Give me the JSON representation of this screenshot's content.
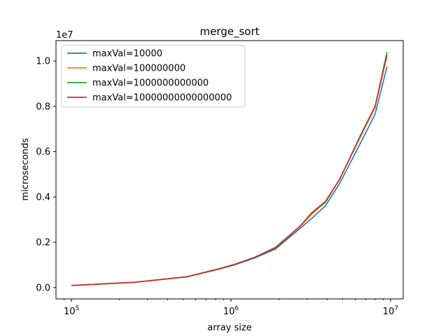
{
  "chart_data": {
    "type": "line",
    "title": "merge_sort",
    "xlabel": "array size",
    "ylabel": "microseconds",
    "xscale": "log",
    "xlim": [
      80000,
      12000000
    ],
    "ylim": [
      -500000,
      10900000
    ],
    "y_offset_label": "1e7",
    "x_ticks": [
      {
        "value": 100000,
        "base": "10",
        "exp": "5"
      },
      {
        "value": 1000000,
        "base": "10",
        "exp": "6"
      },
      {
        "value": 10000000,
        "base": "10",
        "exp": "7"
      }
    ],
    "y_ticks": [
      {
        "value": 0,
        "label": "0.0"
      },
      {
        "value": 2000000,
        "label": "0.2"
      },
      {
        "value": 4000000,
        "label": "0.4"
      },
      {
        "value": 6000000,
        "label": "0.6"
      },
      {
        "value": 8000000,
        "label": "0.8"
      },
      {
        "value": 10000000,
        "label": "1.0"
      }
    ],
    "grid": false,
    "legend_position": "upper-left",
    "x": [
      100000,
      150000,
      250000,
      350000,
      530000,
      850000,
      1050000,
      1400000,
      1900000,
      2700000,
      3200000,
      3900000,
      4800000,
      6500000,
      8000000,
      9500000
    ],
    "series": [
      {
        "name": "maxVal=10000",
        "color": "#1f77b4",
        "values": [
          90000,
          150000,
          230000,
          340000,
          470000,
          820000,
          1000000,
          1300000,
          1700000,
          2600000,
          3050000,
          3600000,
          4600000,
          6400000,
          7650000,
          9750000
        ]
      },
      {
        "name": "maxVal=100000000",
        "color": "#ff7f0e",
        "values": [
          95000,
          155000,
          235000,
          345000,
          480000,
          840000,
          1020000,
          1330000,
          1760000,
          2680000,
          3230000,
          3770000,
          4800000,
          6700000,
          7950000,
          10300000
        ]
      },
      {
        "name": "maxVal=1000000000000",
        "color": "#2ca02c",
        "values": [
          95000,
          155000,
          235000,
          345000,
          480000,
          840000,
          1020000,
          1330000,
          1780000,
          2700000,
          3280000,
          3750000,
          4780000,
          6750000,
          8000000,
          10400000
        ]
      },
      {
        "name": "maxVal=10000000000000000",
        "color": "#d62728",
        "values": [
          95000,
          155000,
          235000,
          345000,
          480000,
          840000,
          1020000,
          1330000,
          1740000,
          2700000,
          3300000,
          3800000,
          4780000,
          6700000,
          8000000,
          10250000
        ]
      }
    ]
  }
}
